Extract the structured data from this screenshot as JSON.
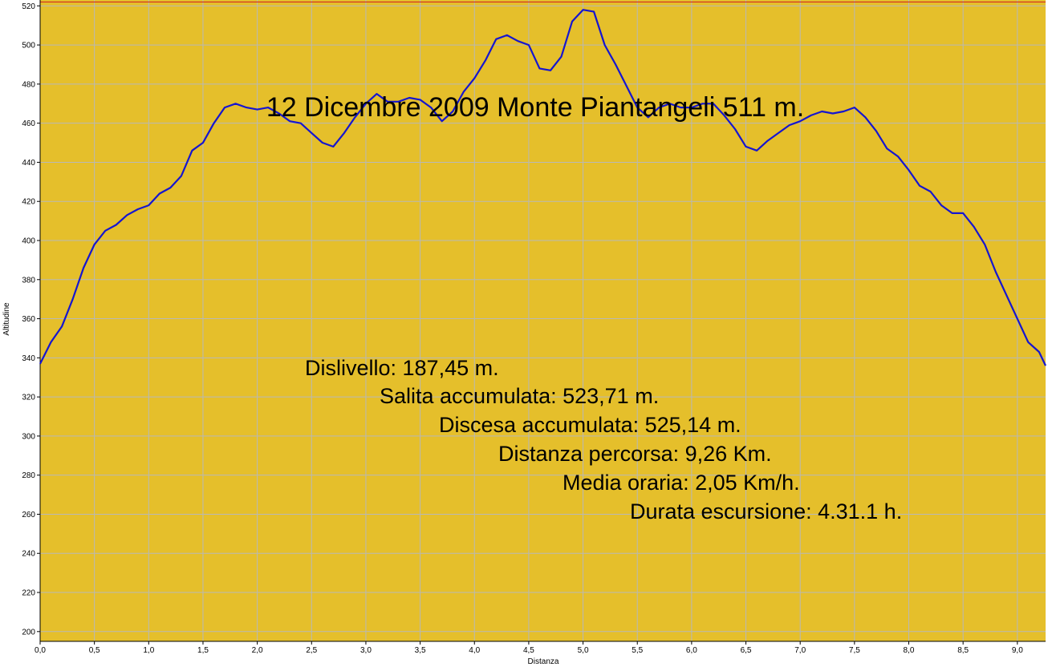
{
  "colors": {
    "background": "#e5bf2b",
    "grid": "#b8b8b8",
    "line": "#1515d0",
    "max_line": "#d02020",
    "axis": "#000000"
  },
  "chart_data": {
    "type": "line",
    "title": "12 Dicembre 2009 Monte Piantangeli 511 m.",
    "xlabel": "Distanza",
    "ylabel": "Altitudine",
    "xlim": [
      0,
      9.26
    ],
    "ylim": [
      195,
      523
    ],
    "grid": true,
    "x_ticks": [
      "0,0",
      "0,5",
      "1,0",
      "1,5",
      "2,0",
      "2,5",
      "3,0",
      "3,5",
      "4,0",
      "4,5",
      "5,0",
      "5,5",
      "6,0",
      "6,5",
      "7,0",
      "7,5",
      "8,0",
      "8,5",
      "9,0"
    ],
    "y_ticks": [
      "200",
      "220",
      "240",
      "260",
      "280",
      "300",
      "320",
      "340",
      "360",
      "380",
      "400",
      "420",
      "440",
      "460",
      "480",
      "500",
      "520"
    ],
    "max_reference_line": 522,
    "series": [
      {
        "x": [
          0.0,
          0.1,
          0.2,
          0.3,
          0.4,
          0.5,
          0.6,
          0.7,
          0.8,
          0.9,
          1.0,
          1.1,
          1.2,
          1.3,
          1.4,
          1.5,
          1.6,
          1.7,
          1.8,
          1.9,
          2.0,
          2.1,
          2.2,
          2.3,
          2.4,
          2.5,
          2.6,
          2.7,
          2.8,
          2.9,
          3.0,
          3.1,
          3.2,
          3.3,
          3.4,
          3.5,
          3.6,
          3.7,
          3.8,
          3.9,
          4.0,
          4.1,
          4.2,
          4.3,
          4.4,
          4.5,
          4.6,
          4.7,
          4.8,
          4.9,
          5.0,
          5.1,
          5.2,
          5.3,
          5.4,
          5.5,
          5.6,
          5.7,
          5.8,
          5.9,
          6.0,
          6.1,
          6.2,
          6.3,
          6.4,
          6.5,
          6.6,
          6.7,
          6.8,
          6.9,
          7.0,
          7.1,
          7.2,
          7.3,
          7.4,
          7.5,
          7.6,
          7.7,
          7.8,
          7.9,
          8.0,
          8.1,
          8.2,
          8.3,
          8.4,
          8.5,
          8.6,
          8.7,
          8.8,
          8.9,
          9.0,
          9.1,
          9.2,
          9.26
        ],
        "y": [
          337,
          348,
          356,
          370,
          386,
          398,
          405,
          408,
          413,
          416,
          418,
          424,
          427,
          433,
          446,
          450,
          460,
          468,
          470,
          468,
          467,
          468,
          465,
          461,
          460,
          455,
          450,
          448,
          455,
          463,
          470,
          475,
          471,
          471,
          473,
          472,
          468,
          461,
          466,
          476,
          483,
          492,
          503,
          505,
          502,
          500,
          488,
          487,
          494,
          512,
          518,
          517,
          500,
          490,
          479,
          468,
          463,
          468,
          470,
          468,
          468,
          470,
          470,
          464,
          457,
          448,
          446,
          451,
          455,
          459,
          461,
          464,
          466,
          465,
          466,
          468,
          463,
          456,
          447,
          443,
          436,
          428,
          425,
          418,
          414,
          414,
          407,
          398,
          384,
          372,
          360,
          348,
          343,
          336
        ]
      }
    ],
    "annotations": [
      "Dislivello: 187,45 m.",
      "Salita accumulata: 523,71 m.",
      "Discesa accumulata: 525,14 m.",
      "Distanza percorsa: 9,26 Km.",
      "Media oraria: 2,05 Km/h.",
      "Durata escursione: 4.31.1 h."
    ]
  }
}
